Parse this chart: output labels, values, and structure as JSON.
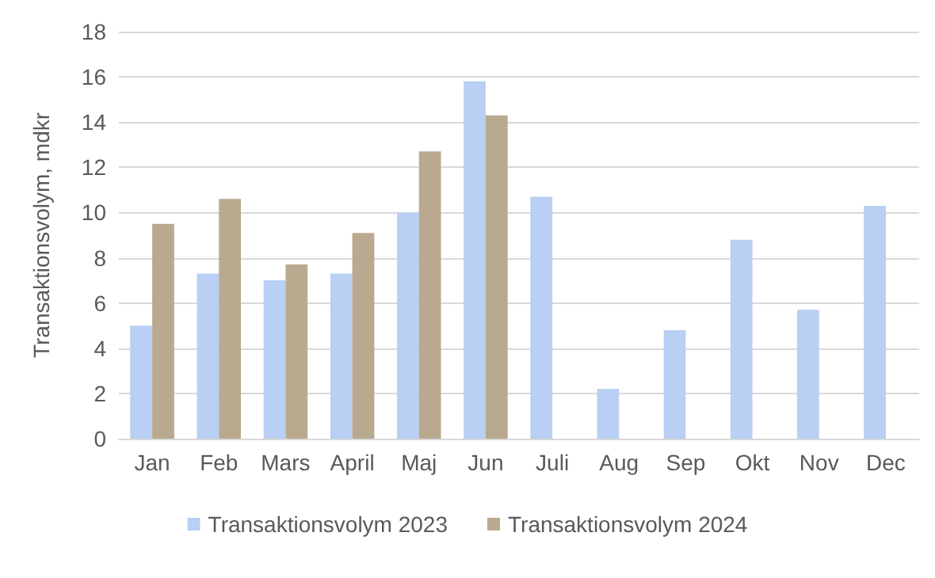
{
  "chart_data": {
    "type": "bar",
    "ylabel": "Transaktionsvolym, mdkr",
    "categories": [
      "Jan",
      "Feb",
      "Mars",
      "April",
      "Maj",
      "Jun",
      "Juli",
      "Aug",
      "Sep",
      "Okt",
      "Nov",
      "Dec"
    ],
    "series": [
      {
        "name": "Transaktionsvolym 2023",
        "color": "#b9cff3",
        "values": [
          5.0,
          7.3,
          7.0,
          7.3,
          10.0,
          15.8,
          10.7,
          2.2,
          4.8,
          8.8,
          5.7,
          10.3
        ]
      },
      {
        "name": "Transaktionsvolym 2024",
        "color": "#b9a98f",
        "values": [
          9.5,
          10.6,
          7.7,
          9.1,
          12.7,
          14.3,
          null,
          null,
          null,
          null,
          null,
          null
        ]
      }
    ],
    "ylim": [
      0,
      18
    ],
    "yticks": [
      0,
      2,
      4,
      6,
      8,
      10,
      12,
      14,
      16,
      18
    ],
    "grid": "y",
    "legend": "bottom"
  }
}
